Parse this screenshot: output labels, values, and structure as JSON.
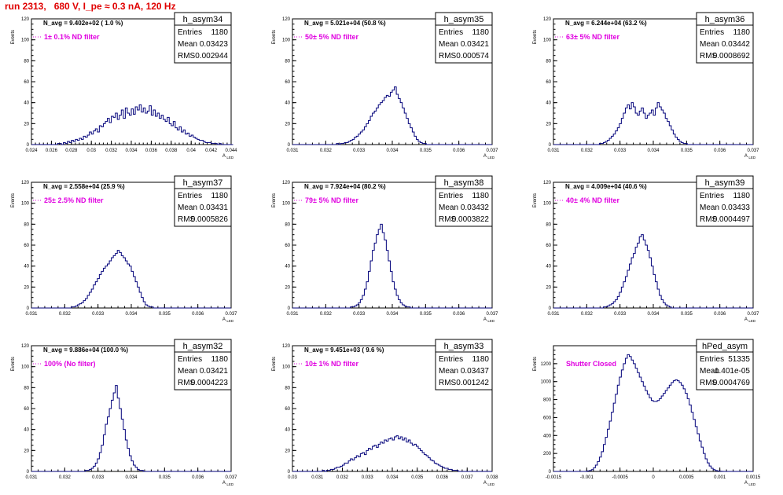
{
  "run_title": "run 2313,   680 V, I_pe ≈ 0.3 nA, 120 Hz",
  "colors": {
    "title": "#e00000",
    "histogram": "#00007a",
    "filter_label": "#e000e0"
  },
  "chart_data": [
    {
      "type": "bar",
      "name": "h_asym34",
      "navg": "N_avg = 9.402e+02 ( 1.0 %)",
      "filter": "1± 0.1% ND filter",
      "stats": {
        "entries_label": "Entries",
        "entries": "1180",
        "mean_label": "Mean",
        "mean": "0.03423",
        "rms_label": "RMS",
        "rms": "0.002944"
      },
      "xlabel": "A_LED",
      "ylabel": "Events",
      "xlim": [
        0.024,
        0.044
      ],
      "ylim": [
        0,
        120
      ],
      "xticks": [
        "0.024",
        "0.026",
        "0.028",
        "0.03",
        "0.032",
        "0.034",
        "0.036",
        "0.038",
        "0.04",
        "0.042",
        "0.044"
      ],
      "yticks": [
        "0",
        "20",
        "40",
        "60",
        "80",
        "100",
        "120"
      ],
      "bins_start": 0.024,
      "bin_width": 0.0002,
      "values": [
        0,
        0,
        0,
        0,
        0,
        0,
        0,
        0,
        0,
        0,
        0,
        0,
        0,
        1,
        1,
        0,
        2,
        1,
        3,
        2,
        4,
        3,
        5,
        4,
        6,
        5,
        8,
        7,
        9,
        12,
        10,
        13,
        15,
        12,
        18,
        17,
        20,
        22,
        25,
        21,
        27,
        26,
        30,
        24,
        28,
        33,
        25,
        35,
        30,
        28,
        34,
        29,
        36,
        33,
        38,
        31,
        35,
        30,
        32,
        37,
        28,
        33,
        27,
        30,
        25,
        28,
        24,
        22,
        26,
        20,
        18,
        22,
        16,
        14,
        17,
        12,
        14,
        10,
        11,
        8,
        9,
        7,
        6,
        5,
        4,
        4,
        3,
        2,
        2,
        2,
        1,
        1,
        1,
        0,
        1,
        0,
        0,
        0,
        0,
        0,
        0
      ]
    },
    {
      "type": "bar",
      "name": "h_asym35",
      "navg": "N_avg = 5.021e+04 (50.8 %)",
      "filter": "50± 5% ND filter",
      "stats": {
        "entries_label": "Entries",
        "entries": "1180",
        "mean_label": "Mean",
        "mean": "0.03421",
        "rms_label": "RMS",
        "rms": "0.000574"
      },
      "xlabel": "A_LED",
      "ylabel": "Events",
      "xlim": [
        0.031,
        0.037
      ],
      "ylim": [
        0,
        120
      ],
      "xticks": [
        "0.031",
        "0.032",
        "0.033",
        "0.034",
        "0.035",
        "0.036",
        "0.037"
      ],
      "yticks": [
        "0",
        "20",
        "40",
        "60",
        "80",
        "100",
        "120"
      ],
      "bins_start": 0.031,
      "bin_width": 6e-05,
      "values": [
        0,
        0,
        0,
        0,
        0,
        0,
        0,
        0,
        0,
        0,
        0,
        0,
        0,
        0,
        0,
        0,
        0,
        0,
        0,
        0,
        0,
        0,
        1,
        0,
        1,
        1,
        2,
        2,
        3,
        4,
        5,
        7,
        8,
        10,
        12,
        14,
        17,
        20,
        23,
        27,
        30,
        32,
        35,
        38,
        40,
        42,
        45,
        47,
        46,
        50,
        52,
        55,
        48,
        44,
        40,
        35,
        30,
        25,
        20,
        16,
        12,
        8,
        5,
        3,
        2,
        1,
        1,
        0,
        0,
        0,
        0,
        0,
        0,
        0,
        0,
        0,
        0,
        0,
        0,
        0,
        0,
        0,
        0,
        0,
        0,
        0,
        0,
        0,
        0,
        0,
        0,
        0,
        0,
        0,
        0,
        0,
        0,
        0,
        0,
        0
      ]
    },
    {
      "type": "bar",
      "name": "h_asym36",
      "navg": "N_avg = 6.244e+04 (63.2 %)",
      "filter": "63± 5% ND filter",
      "stats": {
        "entries_label": "Entries",
        "entries": "1180",
        "mean_label": "Mean",
        "mean": "0.03442",
        "rms_label": "RMS",
        "rms": "0.0008692"
      },
      "xlabel": "A_LED",
      "ylabel": "Events",
      "xlim": [
        0.031,
        0.037
      ],
      "ylim": [
        0,
        120
      ],
      "xticks": [
        "0.031",
        "0.032",
        "0.033",
        "0.034",
        "0.035",
        "0.036",
        "0.037"
      ],
      "yticks": [
        "0",
        "20",
        "40",
        "60",
        "80",
        "100",
        "120"
      ],
      "bins_start": 0.031,
      "bin_width": 6e-05,
      "values": [
        0,
        0,
        0,
        0,
        0,
        0,
        0,
        0,
        0,
        0,
        0,
        0,
        0,
        0,
        0,
        0,
        0,
        0,
        0,
        0,
        0,
        0,
        0,
        1,
        1,
        2,
        3,
        4,
        6,
        8,
        10,
        13,
        16,
        20,
        25,
        30,
        35,
        38,
        34,
        40,
        36,
        30,
        28,
        32,
        35,
        30,
        25,
        28,
        30,
        33,
        28,
        35,
        40,
        36,
        33,
        30,
        25,
        22,
        18,
        14,
        10,
        7,
        5,
        3,
        2,
        1,
        1,
        0,
        0,
        0,
        0,
        0,
        0,
        0,
        0,
        0,
        0,
        0,
        0,
        0,
        0,
        0,
        0,
        0,
        0,
        0,
        0,
        0,
        0,
        0,
        0,
        0,
        0,
        0,
        0,
        0,
        0,
        0,
        0,
        0
      ]
    },
    {
      "type": "bar",
      "name": "h_asym37",
      "navg": "N_avg = 2.558e+04 (25.9 %)",
      "filter": "25± 2.5% ND filter",
      "stats": {
        "entries_label": "Entries",
        "entries": "1180",
        "mean_label": "Mean",
        "mean": "0.03431",
        "rms_label": "RMS",
        "rms": "0.0005826"
      },
      "xlabel": "A_LED",
      "ylabel": "Events",
      "xlim": [
        0.031,
        0.037
      ],
      "ylim": [
        0,
        120
      ],
      "xticks": [
        "0.031",
        "0.032",
        "0.033",
        "0.034",
        "0.035",
        "0.036",
        "0.037"
      ],
      "yticks": [
        "0",
        "20",
        "40",
        "60",
        "80",
        "100",
        "120"
      ],
      "bins_start": 0.031,
      "bin_width": 6e-05,
      "values": [
        0,
        0,
        0,
        0,
        0,
        0,
        0,
        0,
        0,
        0,
        0,
        0,
        0,
        0,
        0,
        0,
        0,
        0,
        0,
        0,
        1,
        1,
        2,
        3,
        4,
        5,
        7,
        9,
        12,
        15,
        18,
        22,
        25,
        28,
        32,
        35,
        38,
        40,
        42,
        45,
        48,
        50,
        52,
        55,
        53,
        50,
        48,
        45,
        42,
        40,
        35,
        30,
        25,
        20,
        15,
        10,
        6,
        3,
        2,
        1,
        1,
        0,
        0,
        0,
        0,
        0,
        0,
        0,
        0,
        0,
        0,
        0,
        0,
        0,
        0,
        0,
        0,
        0,
        0,
        0,
        0,
        0,
        0,
        0,
        0,
        0,
        0,
        0,
        0,
        0,
        0,
        0,
        0,
        0,
        0,
        0,
        0,
        0,
        0,
        0
      ]
    },
    {
      "type": "bar",
      "name": "h_asym38",
      "navg": "N_avg = 7.924e+04 (80.2 %)",
      "filter": "79± 5% ND filter",
      "stats": {
        "entries_label": "Entries",
        "entries": "1180",
        "mean_label": "Mean",
        "mean": "0.03432",
        "rms_label": "RMS",
        "rms": "0.0003822"
      },
      "xlabel": "A_LED",
      "ylabel": "Events",
      "xlim": [
        0.031,
        0.037
      ],
      "ylim": [
        0,
        120
      ],
      "xticks": [
        "0.031",
        "0.032",
        "0.033",
        "0.034",
        "0.035",
        "0.036",
        "0.037"
      ],
      "yticks": [
        "0",
        "20",
        "40",
        "60",
        "80",
        "100",
        "120"
      ],
      "bins_start": 0.031,
      "bin_width": 6e-05,
      "values": [
        0,
        0,
        0,
        0,
        0,
        0,
        0,
        0,
        0,
        0,
        0,
        0,
        0,
        0,
        0,
        0,
        0,
        0,
        0,
        0,
        0,
        0,
        0,
        0,
        0,
        0,
        0,
        0,
        0,
        1,
        1,
        2,
        3,
        5,
        8,
        12,
        18,
        25,
        35,
        45,
        55,
        62,
        70,
        75,
        80,
        72,
        65,
        55,
        45,
        35,
        25,
        18,
        12,
        8,
        5,
        3,
        2,
        1,
        1,
        0,
        0,
        0,
        0,
        0,
        0,
        0,
        0,
        0,
        0,
        0,
        0,
        0,
        0,
        0,
        0,
        0,
        0,
        0,
        0,
        0,
        0,
        0,
        0,
        0,
        0,
        0,
        0,
        0,
        0,
        0,
        0,
        0,
        0,
        0,
        0,
        0,
        0,
        0,
        0,
        0
      ]
    },
    {
      "type": "bar",
      "name": "h_asym39",
      "navg": "N_avg = 4.009e+04 (40.6 %)",
      "filter": "40± 4% ND filter",
      "stats": {
        "entries_label": "Entries",
        "entries": "1180",
        "mean_label": "Mean",
        "mean": "0.03433",
        "rms_label": "RMS",
        "rms": "0.0004497"
      },
      "xlabel": "A_LED",
      "ylabel": "Events",
      "xlim": [
        0.031,
        0.037
      ],
      "ylim": [
        0,
        120
      ],
      "xticks": [
        "0.031",
        "0.032",
        "0.033",
        "0.034",
        "0.035",
        "0.036",
        "0.037"
      ],
      "yticks": [
        "0",
        "20",
        "40",
        "60",
        "80",
        "100",
        "120"
      ],
      "bins_start": 0.031,
      "bin_width": 6e-05,
      "values": [
        0,
        0,
        0,
        0,
        0,
        0,
        0,
        0,
        0,
        0,
        0,
        0,
        0,
        0,
        0,
        0,
        0,
        0,
        0,
        0,
        0,
        0,
        0,
        0,
        0,
        1,
        1,
        2,
        3,
        4,
        6,
        8,
        11,
        15,
        20,
        25,
        30,
        36,
        42,
        48,
        52,
        58,
        62,
        68,
        70,
        65,
        60,
        55,
        48,
        40,
        32,
        25,
        18,
        12,
        8,
        5,
        3,
        2,
        1,
        0,
        0,
        0,
        0,
        0,
        0,
        0,
        0,
        0,
        0,
        0,
        0,
        0,
        0,
        0,
        0,
        0,
        0,
        0,
        0,
        0,
        0,
        0,
        0,
        0,
        0,
        0,
        0,
        0,
        0,
        0,
        0,
        0,
        0,
        0,
        0,
        0,
        0,
        0,
        0,
        0
      ]
    },
    {
      "type": "bar",
      "name": "h_asym32",
      "navg": "N_avg = 9.886e+04 (100.0 %)",
      "filter": "100% (No filter)",
      "stats": {
        "entries_label": "Entries",
        "entries": "1180",
        "mean_label": "Mean",
        "mean": "0.03421",
        "rms_label": "RMS",
        "rms": "0.0004223"
      },
      "xlabel": "A_LED",
      "ylabel": "Events",
      "xlim": [
        0.031,
        0.037
      ],
      "ylim": [
        0,
        120
      ],
      "xticks": [
        "0.031",
        "0.032",
        "0.033",
        "0.034",
        "0.035",
        "0.036",
        "0.037"
      ],
      "yticks": [
        "0",
        "20",
        "40",
        "60",
        "80",
        "100",
        "120"
      ],
      "bins_start": 0.031,
      "bin_width": 6e-05,
      "values": [
        0,
        0,
        0,
        0,
        0,
        0,
        0,
        0,
        0,
        0,
        0,
        0,
        0,
        0,
        0,
        0,
        0,
        0,
        0,
        0,
        0,
        0,
        0,
        0,
        0,
        0,
        0,
        1,
        1,
        2,
        3,
        5,
        8,
        12,
        18,
        25,
        35,
        45,
        52,
        60,
        68,
        75,
        82,
        70,
        60,
        50,
        40,
        30,
        22,
        15,
        10,
        6,
        4,
        2,
        1,
        1,
        0,
        0,
        0,
        0,
        0,
        0,
        0,
        0,
        0,
        0,
        0,
        0,
        0,
        0,
        0,
        0,
        0,
        0,
        0,
        0,
        0,
        0,
        0,
        0,
        0,
        0,
        0,
        0,
        0,
        0,
        0,
        0,
        0,
        0,
        0,
        0,
        0,
        0,
        0,
        0,
        0,
        0,
        0,
        0
      ]
    },
    {
      "type": "bar",
      "name": "h_asym33",
      "navg": "N_avg = 9.451e+03 ( 9.6 %)",
      "filter": "10± 1% ND filter",
      "stats": {
        "entries_label": "Entries",
        "entries": "1180",
        "mean_label": "Mean",
        "mean": "0.03437",
        "rms_label": "RMS",
        "rms": "0.001242"
      },
      "xlabel": "A_LED",
      "ylabel": "Events",
      "xlim": [
        0.03,
        0.038
      ],
      "ylim": [
        0,
        120
      ],
      "xticks": [
        "0.03",
        "0.031",
        "0.032",
        "0.033",
        "0.034",
        "0.035",
        "0.036",
        "0.037",
        "0.038"
      ],
      "yticks": [
        "0",
        "20",
        "40",
        "60",
        "80",
        "100",
        "120"
      ],
      "bins_start": 0.03,
      "bin_width": 8e-05,
      "values": [
        0,
        0,
        0,
        0,
        0,
        0,
        0,
        0,
        0,
        0,
        0,
        0,
        0,
        0,
        0,
        1,
        0,
        1,
        1,
        2,
        2,
        3,
        4,
        4,
        5,
        6,
        8,
        8,
        10,
        12,
        11,
        13,
        15,
        14,
        17,
        18,
        16,
        20,
        22,
        21,
        24,
        25,
        23,
        26,
        28,
        27,
        30,
        29,
        31,
        32,
        30,
        33,
        34,
        31,
        33,
        30,
        32,
        28,
        30,
        27,
        25,
        26,
        24,
        22,
        20,
        18,
        16,
        15,
        13,
        11,
        10,
        8,
        7,
        6,
        5,
        4,
        3,
        3,
        2,
        2,
        1,
        1,
        1,
        0,
        0,
        0,
        0,
        0,
        0,
        0,
        0,
        0,
        0,
        0,
        0,
        0,
        0,
        0,
        0,
        0
      ]
    },
    {
      "type": "bar",
      "name": "hPed_asym",
      "navg": "",
      "filter": "Shutter Closed",
      "stats": {
        "entries_label": "Entries",
        "entries": "51335",
        "mean_label": "Mean",
        "mean": "-1.401e-05",
        "rms_label": "RMS",
        "rms": "0.0004769"
      },
      "xlabel": "A_LED",
      "ylabel": "Events",
      "xlim": [
        -0.0015,
        0.0015
      ],
      "ylim": [
        0,
        1400
      ],
      "xticks": [
        "-0.0015",
        "-0.001",
        "-0.0005",
        "0",
        "0.0005",
        "0.001",
        "0.0015"
      ],
      "yticks": [
        "0",
        "200",
        "400",
        "600",
        "800",
        "1000",
        "1200"
      ],
      "bins_start": -0.0015,
      "bin_width": 3e-05,
      "values": [
        0,
        0,
        0,
        0,
        0,
        0,
        0,
        0,
        0,
        0,
        0,
        0,
        0,
        0,
        0,
        0,
        0,
        5,
        10,
        20,
        40,
        70,
        110,
        160,
        220,
        300,
        380,
        470,
        560,
        660,
        760,
        860,
        960,
        1050,
        1130,
        1200,
        1260,
        1300,
        1280,
        1240,
        1200,
        1150,
        1100,
        1050,
        1000,
        950,
        900,
        860,
        820,
        790,
        780,
        780,
        790,
        810,
        840,
        870,
        900,
        930,
        960,
        990,
        1010,
        1020,
        1010,
        990,
        960,
        920,
        870,
        810,
        740,
        660,
        580,
        500,
        420,
        340,
        270,
        200,
        140,
        95,
        60,
        35,
        20,
        10,
        5,
        2,
        1,
        0,
        0,
        0,
        0,
        0,
        0,
        0,
        0,
        0,
        0,
        0,
        0,
        0,
        0,
        0
      ]
    }
  ]
}
